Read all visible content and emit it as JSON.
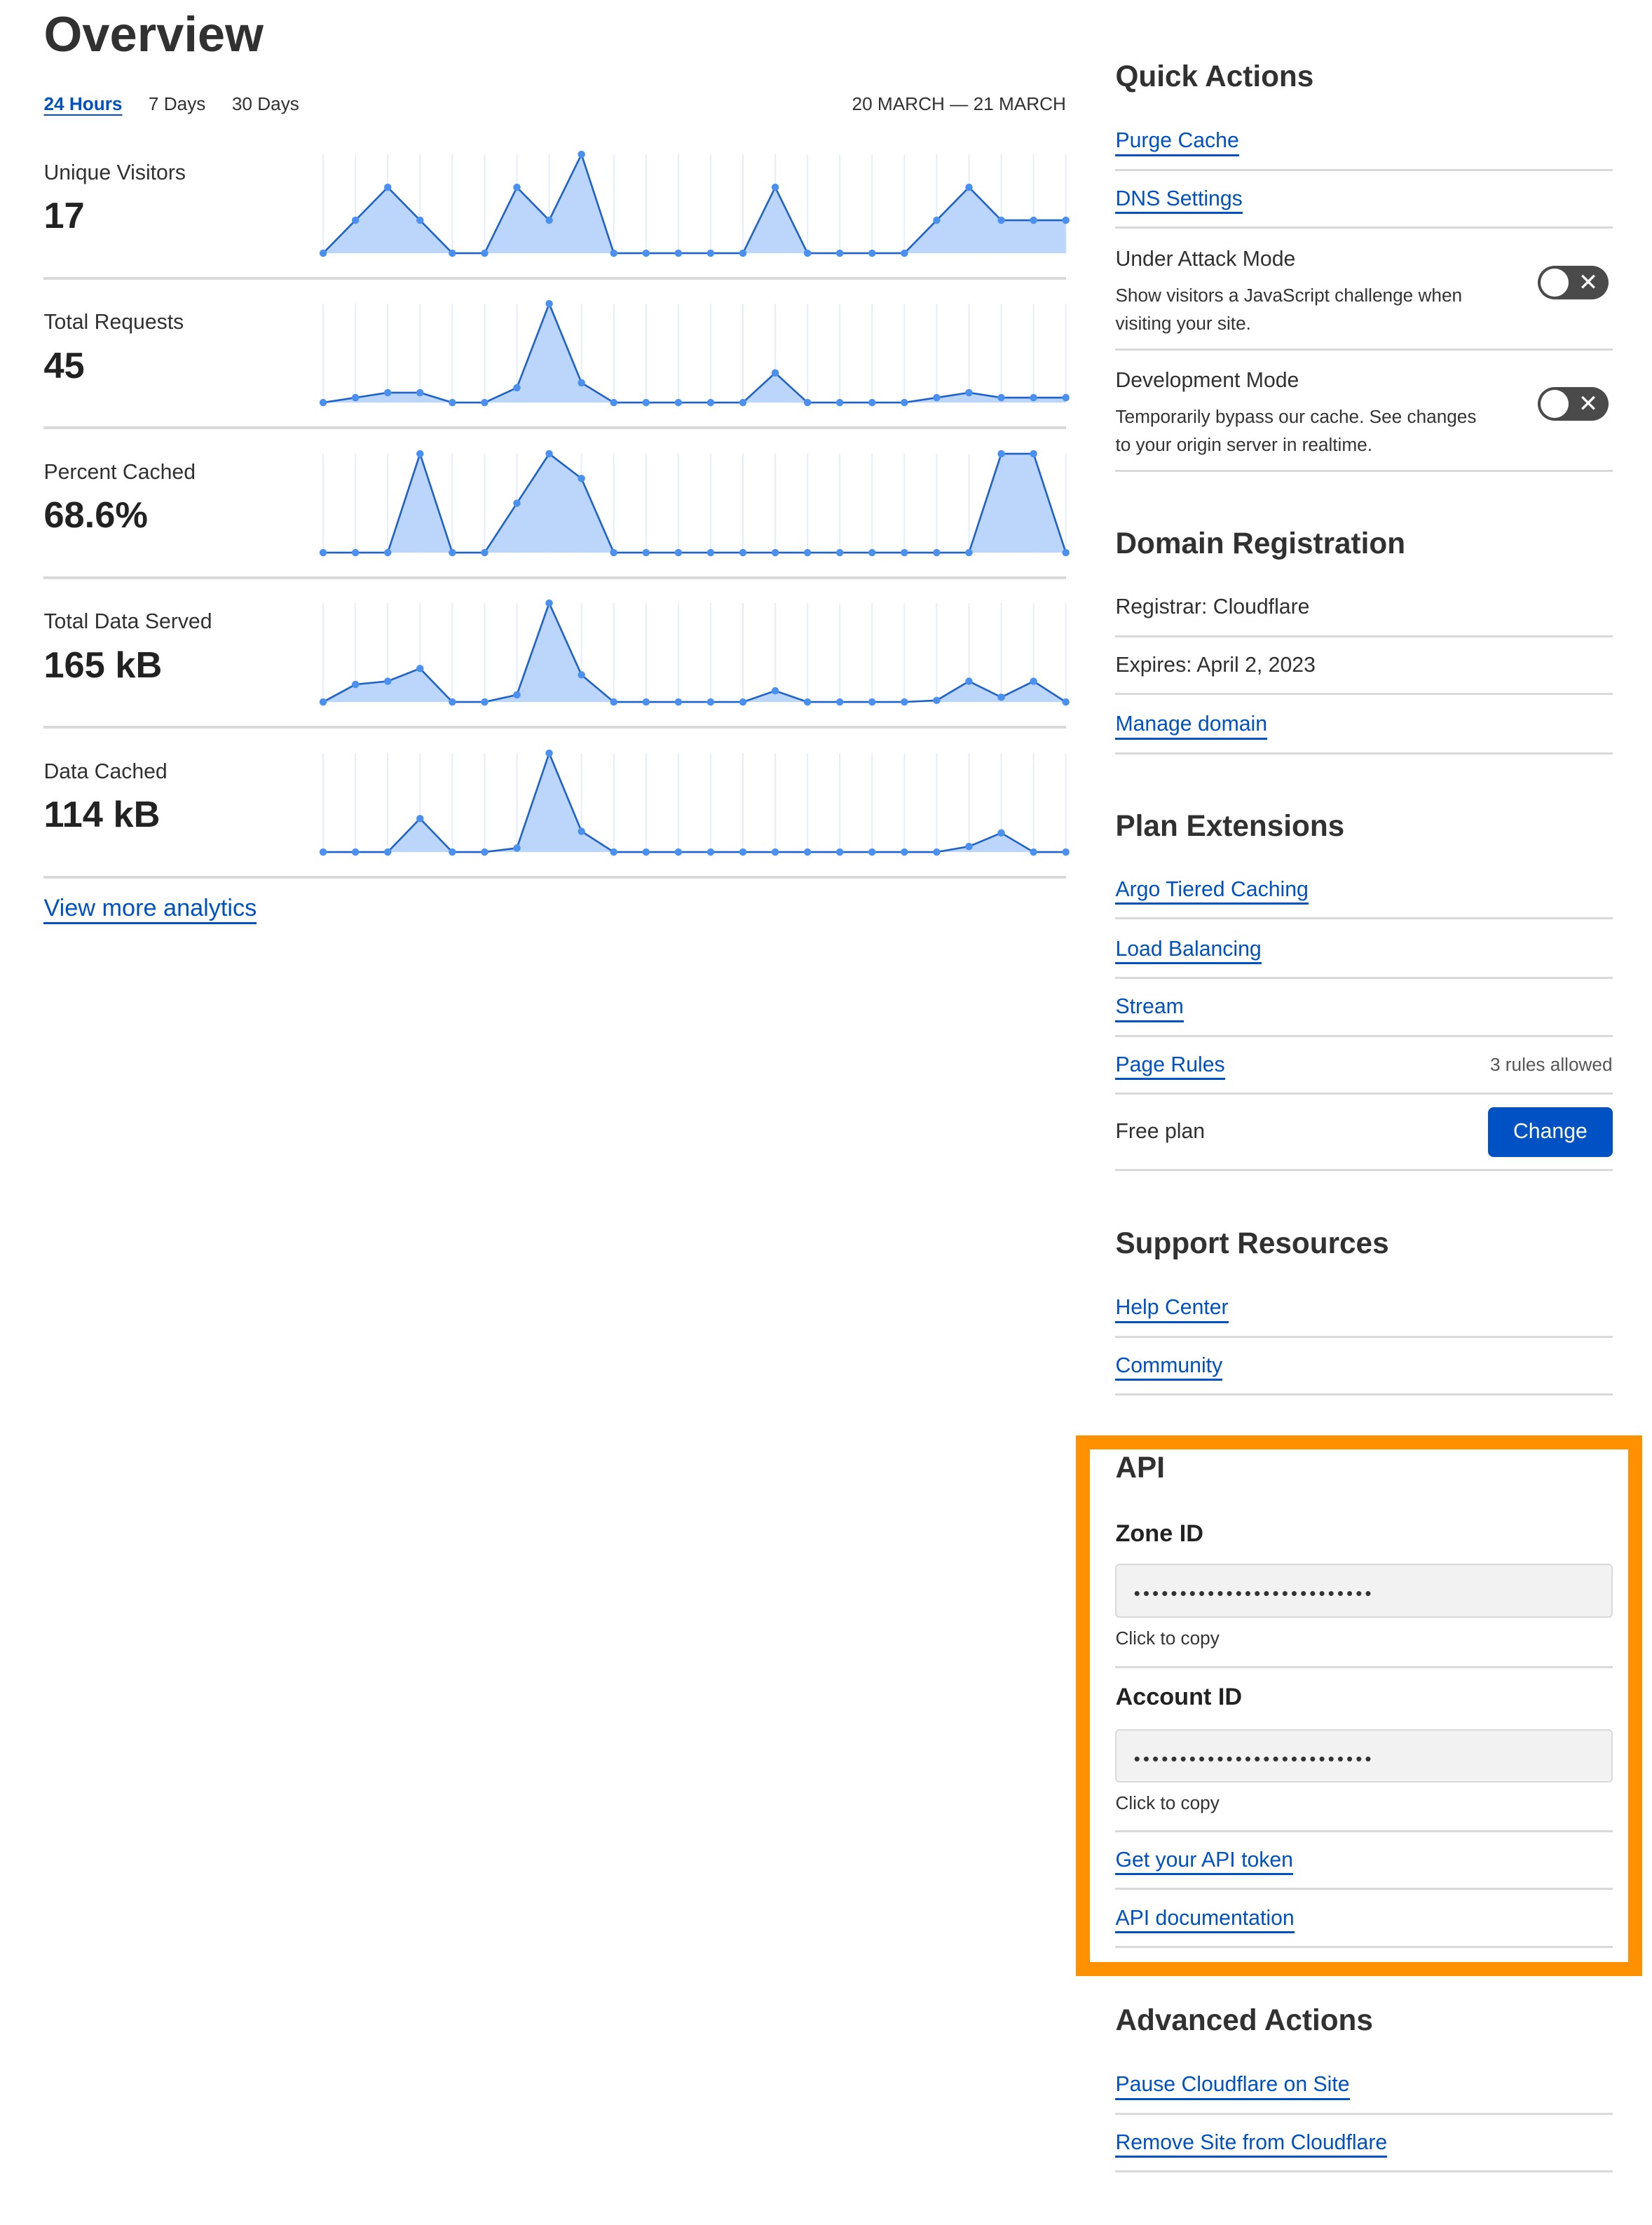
{
  "overview": {
    "title": "Overview",
    "tabs": [
      {
        "label": "24 Hours",
        "active": true
      },
      {
        "label": "7 Days",
        "active": false
      },
      {
        "label": "30 Days",
        "active": false
      }
    ],
    "date_range": "20 MARCH — 21 MARCH",
    "view_more": "View more analytics"
  },
  "chart_data": [
    {
      "type": "area",
      "title": "Unique Visitors",
      "value_label": "17",
      "values": [
        0,
        1,
        2,
        1,
        0,
        0,
        2,
        1,
        3,
        0,
        0,
        0,
        0,
        0,
        2,
        0,
        0,
        0,
        0,
        1,
        2,
        1,
        1,
        1
      ]
    },
    {
      "type": "area",
      "title": "Total Requests",
      "value_label": "45",
      "values": [
        0,
        1,
        2,
        2,
        0,
        0,
        3,
        20,
        4,
        0,
        0,
        0,
        0,
        0,
        6,
        0,
        0,
        0,
        0,
        1,
        2,
        1,
        1,
        1
      ]
    },
    {
      "type": "area",
      "title": "Percent Cached",
      "value_label": "68.6%",
      "values": [
        0,
        0,
        0,
        100,
        0,
        0,
        50,
        100,
        75,
        0,
        0,
        0,
        0,
        0,
        0,
        0,
        0,
        0,
        0,
        0,
        0,
        100,
        100,
        0
      ]
    },
    {
      "type": "area",
      "title": "Total Data Served",
      "value_label": "165 kB",
      "values": [
        0,
        11,
        13,
        21,
        0,
        0,
        4.5,
        62,
        17,
        0,
        0,
        0,
        0,
        0,
        7,
        0,
        0,
        0,
        0,
        1,
        13,
        3,
        13,
        0
      ]
    },
    {
      "type": "area",
      "title": "Data Cached",
      "value_label": "114 kB",
      "values": [
        0,
        0,
        0,
        21,
        0,
        0,
        2.5,
        62,
        13,
        0,
        0,
        0,
        0,
        0,
        0,
        0,
        0,
        0,
        0,
        0,
        3.5,
        12,
        0,
        0
      ]
    }
  ],
  "colors": {
    "accent": "#0051c3",
    "area_fill": "#bcd6fb",
    "line": "#1f63c8",
    "point": "#4a90f0",
    "highlight": "#ff9000"
  },
  "quick_actions": {
    "title": "Quick Actions",
    "links": [
      "Purge Cache",
      "DNS Settings"
    ],
    "toggles": [
      {
        "title": "Under Attack Mode",
        "desc": "Show visitors a JavaScript challenge when visiting your site.",
        "on": false
      },
      {
        "title": "Development Mode",
        "desc": "Temporarily bypass our cache. See changes to your origin server in realtime.",
        "on": false
      }
    ],
    "toggle_off_glyph": "✕"
  },
  "domain": {
    "title": "Domain Registration",
    "registrar": "Registrar: Cloudflare",
    "expires": "Expires: April 2, 2023",
    "manage": "Manage domain"
  },
  "plan": {
    "title": "Plan Extensions",
    "links": [
      "Argo Tiered Caching",
      "Load Balancing",
      "Stream",
      "Page Rules"
    ],
    "page_rules_note": "3 rules allowed",
    "plan_name": "Free plan",
    "change": "Change"
  },
  "support": {
    "title": "Support Resources",
    "links": [
      "Help Center",
      "Community"
    ]
  },
  "api": {
    "title": "API",
    "zone_label": "Zone ID",
    "zone_value": "••••••••••••••••••••••••••",
    "account_label": "Account ID",
    "account_value": "••••••••••••••••••••••••••",
    "copy_hint": "Click to copy",
    "links": [
      "Get your API token",
      "API documentation"
    ]
  },
  "advanced": {
    "title": "Advanced Actions",
    "links": [
      "Pause Cloudflare on Site",
      "Remove Site from Cloudflare"
    ]
  }
}
